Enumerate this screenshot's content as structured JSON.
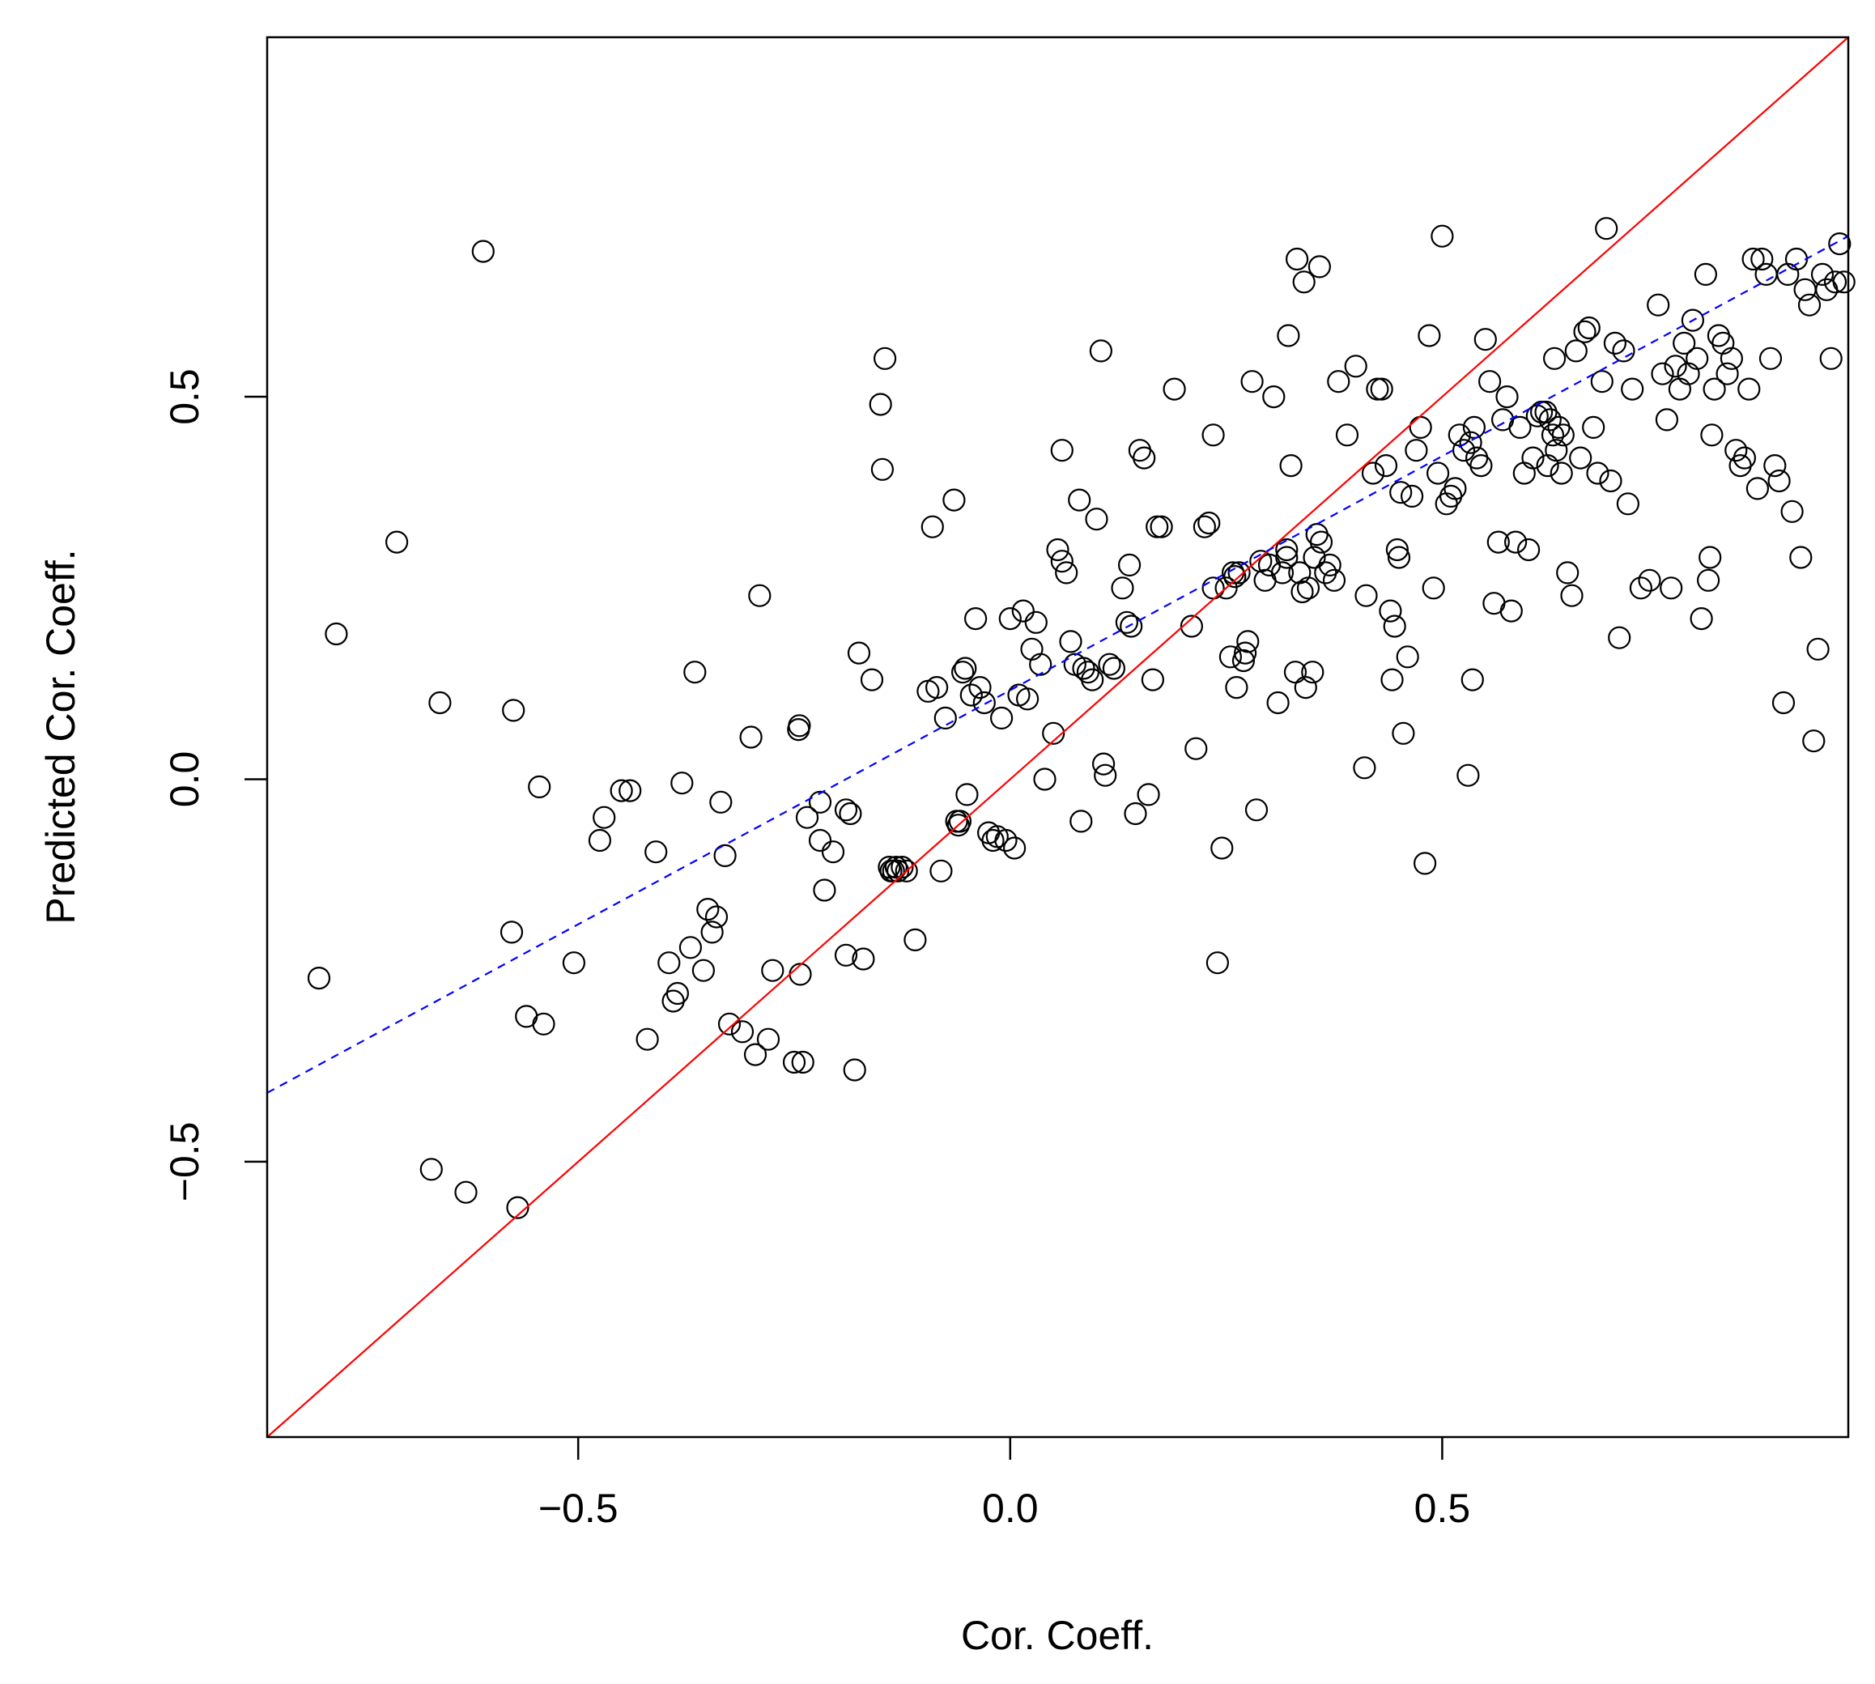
{
  "chart_data": {
    "type": "scatter",
    "title": "",
    "xlabel": "Cor. Coeff.",
    "ylabel": "Predicted Cor. Coeff.",
    "xlim": [
      -0.86,
      0.97
    ],
    "ylim": [
      -0.86,
      0.97
    ],
    "x_ticks": [
      -0.5,
      0.0,
      0.5
    ],
    "y_ticks": [
      -0.5,
      0.0,
      0.5
    ],
    "x_tick_labels": [
      "−0.5",
      "0.0",
      "0.5"
    ],
    "y_tick_labels": [
      "−0.5",
      "0.0",
      "0.5"
    ],
    "grid": false,
    "legend": "none",
    "marker": "open-circle",
    "point_color": "#000000",
    "points": [
      [
        -0.8,
        -0.26
      ],
      [
        -0.78,
        0.19
      ],
      [
        -0.71,
        0.31
      ],
      [
        -0.67,
        -0.51
      ],
      [
        -0.66,
        0.1
      ],
      [
        -0.63,
        -0.54
      ],
      [
        -0.61,
        0.69
      ],
      [
        -0.577,
        -0.2
      ],
      [
        -0.575,
        0.09
      ],
      [
        -0.57,
        -0.56
      ],
      [
        -0.56,
        -0.31
      ],
      [
        -0.545,
        -0.01
      ],
      [
        -0.54,
        -0.32
      ],
      [
        -0.505,
        -0.24
      ],
      [
        -0.475,
        -0.08
      ],
      [
        -0.47,
        -0.05
      ],
      [
        -0.45,
        -0.015
      ],
      [
        -0.44,
        -0.015
      ],
      [
        -0.42,
        -0.34
      ],
      [
        -0.41,
        -0.095
      ],
      [
        -0.395,
        -0.24
      ],
      [
        -0.39,
        -0.29
      ],
      [
        -0.385,
        -0.28
      ],
      [
        -0.38,
        -0.005
      ],
      [
        -0.37,
        -0.22
      ],
      [
        -0.365,
        0.14
      ],
      [
        -0.355,
        -0.25
      ],
      [
        -0.35,
        -0.17
      ],
      [
        -0.345,
        -0.2
      ],
      [
        -0.34,
        -0.18
      ],
      [
        -0.335,
        -0.03
      ],
      [
        -0.33,
        -0.1
      ],
      [
        -0.325,
        -0.32
      ],
      [
        -0.31,
        -0.33
      ],
      [
        -0.3,
        0.055
      ],
      [
        -0.295,
        -0.36
      ],
      [
        -0.29,
        0.24
      ],
      [
        -0.28,
        -0.34
      ],
      [
        -0.275,
        -0.25
      ],
      [
        -0.25,
        -0.37
      ],
      [
        -0.245,
        0.065
      ],
      [
        -0.244,
        0.07
      ],
      [
        -0.243,
        -0.255
      ],
      [
        -0.24,
        -0.37
      ],
      [
        -0.235,
        -0.05
      ],
      [
        -0.22,
        -0.03
      ],
      [
        -0.22,
        -0.08
      ],
      [
        -0.215,
        -0.145
      ],
      [
        -0.205,
        -0.095
      ],
      [
        -0.19,
        -0.04
      ],
      [
        -0.19,
        -0.23
      ],
      [
        -0.185,
        -0.045
      ],
      [
        -0.18,
        -0.38
      ],
      [
        -0.175,
        0.165
      ],
      [
        -0.17,
        -0.235
      ],
      [
        -0.16,
        0.13
      ],
      [
        -0.15,
        0.49
      ],
      [
        -0.148,
        0.405
      ],
      [
        -0.145,
        0.55
      ],
      [
        -0.14,
        -0.115
      ],
      [
        -0.138,
        -0.12
      ],
      [
        -0.135,
        -0.12
      ],
      [
        -0.132,
        -0.115
      ],
      [
        -0.13,
        -0.12
      ],
      [
        -0.125,
        -0.115
      ],
      [
        -0.12,
        -0.12
      ],
      [
        -0.11,
        -0.21
      ],
      [
        -0.095,
        0.115
      ],
      [
        -0.09,
        0.33
      ],
      [
        -0.085,
        0.12
      ],
      [
        -0.08,
        -0.12
      ],
      [
        -0.075,
        0.08
      ],
      [
        -0.065,
        0.365
      ],
      [
        -0.062,
        -0.055
      ],
      [
        -0.06,
        -0.06
      ],
      [
        -0.058,
        -0.055
      ],
      [
        -0.055,
        0.14
      ],
      [
        -0.052,
        0.145
      ],
      [
        -0.05,
        -0.02
      ],
      [
        -0.045,
        0.11
      ],
      [
        -0.04,
        0.21
      ],
      [
        -0.035,
        0.12
      ],
      [
        -0.03,
        0.1
      ],
      [
        -0.025,
        -0.07
      ],
      [
        -0.02,
        -0.08
      ],
      [
        -0.015,
        -0.075
      ],
      [
        -0.01,
        0.08
      ],
      [
        -0.005,
        -0.08
      ],
      [
        0.0,
        0.21
      ],
      [
        0.005,
        -0.09
      ],
      [
        0.01,
        0.11
      ],
      [
        0.015,
        0.22
      ],
      [
        0.02,
        0.105
      ],
      [
        0.025,
        0.17
      ],
      [
        0.03,
        0.205
      ],
      [
        0.035,
        0.15
      ],
      [
        0.04,
        0.0
      ],
      [
        0.05,
        0.06
      ],
      [
        0.055,
        0.3
      ],
      [
        0.06,
        0.285
      ],
      [
        0.06,
        0.43
      ],
      [
        0.065,
        0.27
      ],
      [
        0.07,
        0.18
      ],
      [
        0.075,
        0.15
      ],
      [
        0.08,
        0.365
      ],
      [
        0.082,
        -0.055
      ],
      [
        0.085,
        0.145
      ],
      [
        0.09,
        0.14
      ],
      [
        0.095,
        0.13
      ],
      [
        0.1,
        0.34
      ],
      [
        0.105,
        0.56
      ],
      [
        0.108,
        0.02
      ],
      [
        0.11,
        0.005
      ],
      [
        0.115,
        0.15
      ],
      [
        0.12,
        0.145
      ],
      [
        0.13,
        0.25
      ],
      [
        0.135,
        0.205
      ],
      [
        0.138,
        0.28
      ],
      [
        0.14,
        0.2
      ],
      [
        0.145,
        -0.045
      ],
      [
        0.15,
        0.43
      ],
      [
        0.155,
        0.42
      ],
      [
        0.16,
        -0.02
      ],
      [
        0.165,
        0.13
      ],
      [
        0.17,
        0.33
      ],
      [
        0.175,
        0.33
      ],
      [
        0.19,
        0.51
      ],
      [
        0.21,
        0.2
      ],
      [
        0.215,
        0.04
      ],
      [
        0.225,
        0.33
      ],
      [
        0.23,
        0.335
      ],
      [
        0.235,
        0.25
      ],
      [
        0.235,
        0.45
      ],
      [
        0.24,
        -0.24
      ],
      [
        0.245,
        -0.09
      ],
      [
        0.25,
        0.25
      ],
      [
        0.255,
        0.16
      ],
      [
        0.258,
        0.27
      ],
      [
        0.26,
        0.265
      ],
      [
        0.262,
        0.12
      ],
      [
        0.265,
        0.27
      ],
      [
        0.27,
        0.155
      ],
      [
        0.272,
        0.165
      ],
      [
        0.275,
        0.18
      ],
      [
        0.28,
        0.52
      ],
      [
        0.285,
        -0.04
      ],
      [
        0.29,
        0.285
      ],
      [
        0.295,
        0.26
      ],
      [
        0.3,
        0.28
      ],
      [
        0.305,
        0.5
      ],
      [
        0.31,
        0.1
      ],
      [
        0.315,
        0.27
      ],
      [
        0.32,
        0.29
      ],
      [
        0.32,
        0.3
      ],
      [
        0.322,
        0.58
      ],
      [
        0.325,
        0.41
      ],
      [
        0.33,
        0.14
      ],
      [
        0.332,
        0.68
      ],
      [
        0.335,
        0.27
      ],
      [
        0.338,
        0.245
      ],
      [
        0.34,
        0.65
      ],
      [
        0.342,
        0.12
      ],
      [
        0.345,
        0.25
      ],
      [
        0.35,
        0.14
      ],
      [
        0.352,
        0.29
      ],
      [
        0.355,
        0.32
      ],
      [
        0.358,
        0.67
      ],
      [
        0.36,
        0.31
      ],
      [
        0.365,
        0.27
      ],
      [
        0.37,
        0.28
      ],
      [
        0.375,
        0.26
      ],
      [
        0.38,
        0.52
      ],
      [
        0.39,
        0.45
      ],
      [
        0.4,
        0.54
      ],
      [
        0.41,
        0.015
      ],
      [
        0.412,
        0.24
      ],
      [
        0.42,
        0.4
      ],
      [
        0.425,
        0.51
      ],
      [
        0.43,
        0.51
      ],
      [
        0.435,
        0.41
      ],
      [
        0.44,
        0.22
      ],
      [
        0.442,
        0.13
      ],
      [
        0.445,
        0.2
      ],
      [
        0.448,
        0.3
      ],
      [
        0.45,
        0.29
      ],
      [
        0.452,
        0.375
      ],
      [
        0.455,
        0.06
      ],
      [
        0.46,
        0.16
      ],
      [
        0.465,
        0.37
      ],
      [
        0.47,
        0.43
      ],
      [
        0.475,
        0.46
      ],
      [
        0.48,
        -0.11
      ],
      [
        0.485,
        0.58
      ],
      [
        0.49,
        0.25
      ],
      [
        0.495,
        0.4
      ],
      [
        0.5,
        0.71
      ],
      [
        0.505,
        0.36
      ],
      [
        0.51,
        0.37
      ],
      [
        0.515,
        0.38
      ],
      [
        0.52,
        0.45
      ],
      [
        0.525,
        0.43
      ],
      [
        0.53,
        0.005
      ],
      [
        0.533,
        0.44
      ],
      [
        0.535,
        0.13
      ],
      [
        0.537,
        0.46
      ],
      [
        0.54,
        0.42
      ],
      [
        0.545,
        0.41
      ],
      [
        0.55,
        0.575
      ],
      [
        0.555,
        0.52
      ],
      [
        0.56,
        0.23
      ],
      [
        0.565,
        0.31
      ],
      [
        0.57,
        0.47
      ],
      [
        0.575,
        0.5
      ],
      [
        0.58,
        0.22
      ],
      [
        0.585,
        0.31
      ],
      [
        0.59,
        0.46
      ],
      [
        0.595,
        0.4
      ],
      [
        0.6,
        0.3
      ],
      [
        0.605,
        0.42
      ],
      [
        0.61,
        0.475
      ],
      [
        0.615,
        0.48
      ],
      [
        0.62,
        0.48
      ],
      [
        0.622,
        0.41
      ],
      [
        0.625,
        0.47
      ],
      [
        0.628,
        0.45
      ],
      [
        0.63,
        0.55
      ],
      [
        0.632,
        0.43
      ],
      [
        0.635,
        0.46
      ],
      [
        0.638,
        0.4
      ],
      [
        0.64,
        0.45
      ],
      [
        0.645,
        0.27
      ],
      [
        0.65,
        0.24
      ],
      [
        0.655,
        0.56
      ],
      [
        0.66,
        0.42
      ],
      [
        0.665,
        0.585
      ],
      [
        0.67,
        0.59
      ],
      [
        0.675,
        0.46
      ],
      [
        0.68,
        0.4
      ],
      [
        0.685,
        0.52
      ],
      [
        0.69,
        0.72
      ],
      [
        0.695,
        0.39
      ],
      [
        0.7,
        0.57
      ],
      [
        0.705,
        0.185
      ],
      [
        0.71,
        0.56
      ],
      [
        0.715,
        0.36
      ],
      [
        0.72,
        0.51
      ],
      [
        0.73,
        0.25
      ],
      [
        0.74,
        0.26
      ],
      [
        0.75,
        0.62
      ],
      [
        0.755,
        0.53
      ],
      [
        0.76,
        0.47
      ],
      [
        0.765,
        0.25
      ],
      [
        0.77,
        0.54
      ],
      [
        0.775,
        0.51
      ],
      [
        0.78,
        0.57
      ],
      [
        0.785,
        0.53
      ],
      [
        0.79,
        0.6
      ],
      [
        0.795,
        0.55
      ],
      [
        0.8,
        0.21
      ],
      [
        0.805,
        0.66
      ],
      [
        0.808,
        0.26
      ],
      [
        0.81,
        0.29
      ],
      [
        0.812,
        0.45
      ],
      [
        0.815,
        0.51
      ],
      [
        0.82,
        0.58
      ],
      [
        0.825,
        0.57
      ],
      [
        0.83,
        0.53
      ],
      [
        0.835,
        0.55
      ],
      [
        0.84,
        0.43
      ],
      [
        0.845,
        0.41
      ],
      [
        0.85,
        0.42
      ],
      [
        0.855,
        0.51
      ],
      [
        0.86,
        0.68
      ],
      [
        0.865,
        0.38
      ],
      [
        0.87,
        0.68
      ],
      [
        0.875,
        0.66
      ],
      [
        0.88,
        0.55
      ],
      [
        0.885,
        0.41
      ],
      [
        0.89,
        0.39
      ],
      [
        0.895,
        0.1
      ],
      [
        0.9,
        0.66
      ],
      [
        0.905,
        0.35
      ],
      [
        0.91,
        0.68
      ],
      [
        0.915,
        0.29
      ],
      [
        0.92,
        0.64
      ],
      [
        0.925,
        0.62
      ],
      [
        0.93,
        0.05
      ],
      [
        0.935,
        0.17
      ],
      [
        0.94,
        0.66
      ],
      [
        0.945,
        0.64
      ],
      [
        0.95,
        0.55
      ],
      [
        0.955,
        0.65
      ],
      [
        0.96,
        0.7
      ],
      [
        0.965,
        0.65
      ]
    ],
    "reference_lines": [
      {
        "name": "",
        "kind": "identity",
        "style": "solid",
        "color": "#ff0000",
        "x": [
          -0.86,
          0.97
        ],
        "y": [
          -0.86,
          0.97
        ]
      },
      {
        "name": "",
        "kind": "regression",
        "style": "dashed",
        "color": "#0000ff",
        "x": [
          -0.86,
          0.97
        ],
        "y": [
          -0.41,
          0.71
        ]
      }
    ]
  }
}
